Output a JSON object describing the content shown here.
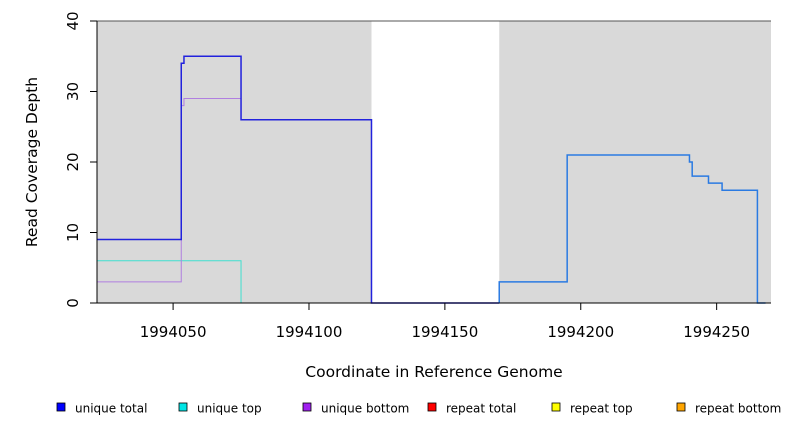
{
  "chart_data": {
    "type": "line",
    "title": "",
    "xlabel": "Coordinate in Reference Genome",
    "ylabel": "Read Coverage Depth",
    "xlim": [
      1994022,
      1994270
    ],
    "ylim": [
      0,
      40
    ],
    "x_ticks": [
      1994050,
      1994100,
      1994150,
      1994200,
      1994250
    ],
    "y_ticks": [
      0,
      10,
      20,
      30,
      40
    ],
    "shaded_regions": [
      {
        "x0": 1994022,
        "x1": 1994123,
        "color": "#d9d9d9"
      },
      {
        "x0": 1994170,
        "x1": 1994270,
        "color": "#d9d9d9"
      }
    ],
    "legend_position": "bottom",
    "legend": [
      {
        "label": "unique total",
        "color": "#0000ff"
      },
      {
        "label": "unique top",
        "color": "#00e5e5"
      },
      {
        "label": "unique bottom",
        "color": "#a020f0"
      },
      {
        "label": "repeat total",
        "color": "#ff0000"
      },
      {
        "label": "repeat top",
        "color": "#ffff00"
      },
      {
        "label": "repeat bottom",
        "color": "#ffa500"
      }
    ],
    "series": [
      {
        "name": "repeat bottom",
        "color": "#ffa500",
        "width": 1,
        "x": [
          1994022,
          1994075
        ],
        "y": [
          0,
          0
        ]
      },
      {
        "name": "unique top",
        "color": "#40e0d0",
        "width": 1,
        "x": [
          1994022,
          1994075,
          1994075,
          1994123
        ],
        "y": [
          6,
          6,
          0,
          0
        ]
      },
      {
        "name": "unique bottom",
        "color": "#b07fe0",
        "width": 1,
        "x": [
          1994022,
          1994053,
          1994053,
          1994054,
          1994054,
          1994075,
          1994075,
          1994123
        ],
        "y": [
          3,
          3,
          28,
          28,
          29,
          29,
          26,
          26
        ]
      },
      {
        "name": "unique total",
        "color": "#2222dd",
        "width": 1.5,
        "x": [
          1994022,
          1994053,
          1994053,
          1994054,
          1994054,
          1994075,
          1994075,
          1994123,
          1994123,
          1994170
        ],
        "y": [
          9,
          9,
          34,
          34,
          35,
          35,
          26,
          26,
          0,
          0
        ]
      },
      {
        "name": "repeat total",
        "color": "#ff0000",
        "width": 1,
        "x": [
          1994195,
          1994266
        ],
        "y": [
          0,
          0
        ]
      },
      {
        "name": "",
        "color": "#2a7ae2",
        "width": 1.5,
        "x": [
          1994170,
          1994170,
          1994195,
          1994195,
          1994240,
          1994240,
          1994241,
          1994241,
          1994247,
          1994247,
          1994252,
          1994252,
          1994265,
          1994265,
          1994268
        ],
        "y": [
          0,
          3,
          3,
          21,
          21,
          20,
          20,
          18,
          18,
          17,
          17,
          16,
          16,
          0,
          0
        ]
      }
    ]
  }
}
